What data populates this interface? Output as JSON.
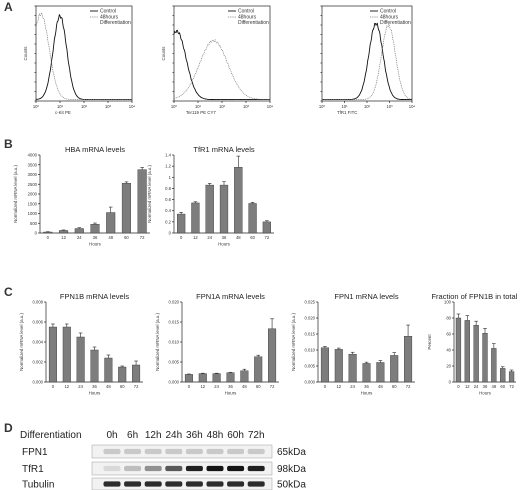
{
  "panels": {
    "a": "A",
    "b": "B",
    "c": "C",
    "d": "D"
  },
  "chart_data": [
    {
      "type": "line",
      "id": "A1",
      "xlabel": "c-Kit PE",
      "ylabel": "Counts",
      "log_x": true,
      "x_ticks": [
        "10⁰",
        "10¹",
        "10²",
        "10³",
        "10⁴"
      ],
      "legend": [
        "Control",
        "48hours Differentiation"
      ],
      "series": [
        {
          "name": "Control",
          "style": "solid",
          "peaks": [
            {
              "x": 10.0,
              "h": 0.88,
              "w": 0.18
            }
          ]
        },
        {
          "name": "48hours Differentiation",
          "style": "dotted",
          "peaks": [
            {
              "x": 1.6,
              "h": 0.9,
              "w": 0.22
            }
          ]
        }
      ]
    },
    {
      "type": "line",
      "id": "A2",
      "xlabel": "Ter119 PE CY7",
      "ylabel": "Counts",
      "log_x": true,
      "x_ticks": [
        "10⁰",
        "10¹",
        "10²",
        "10³",
        "10⁴"
      ],
      "legend": [
        "Control",
        "48hours Differentiation"
      ],
      "series": [
        {
          "name": "Control",
          "style": "solid",
          "peaks": [
            {
              "x": 1.3,
              "h": 0.72,
              "w": 0.25
            }
          ]
        },
        {
          "name": "48hours Differentiation",
          "style": "dotted",
          "peaks": [
            {
              "x": 45,
              "h": 0.62,
              "w": 0.38
            }
          ]
        }
      ]
    },
    {
      "type": "line",
      "id": "A3",
      "xlabel": "TfR1 FITC",
      "ylabel": "",
      "log_x": true,
      "x_ticks": [
        "10⁰",
        "10¹",
        "10²",
        "10³",
        "10⁴"
      ],
      "legend": [
        "Control",
        "48hours Differentiation"
      ],
      "series": [
        {
          "name": "Control",
          "style": "solid",
          "peaks": [
            {
              "x": 250,
              "h": 0.8,
              "w": 0.2
            }
          ]
        },
        {
          "name": "48hours Differentiation",
          "style": "dotted",
          "peaks": [
            {
              "x": 900,
              "h": 0.78,
              "w": 0.2
            }
          ]
        }
      ]
    },
    {
      "type": "bar",
      "id": "B1",
      "title": "HBA mRNA levels",
      "xlabel": "Hours",
      "ylabel": "Normalized mRNA level (a.u.)",
      "categories": [
        "0",
        "12",
        "24",
        "36",
        "48",
        "60",
        "72"
      ],
      "values": [
        50,
        130,
        230,
        450,
        1050,
        2550,
        3250
      ],
      "errors": [
        15,
        25,
        40,
        60,
        280,
        70,
        110
      ],
      "ylim": [
        0,
        4000
      ],
      "yticks": [
        0,
        500,
        1000,
        1500,
        2000,
        2500,
        3000,
        3500,
        4000
      ]
    },
    {
      "type": "bar",
      "id": "B2",
      "title": "TfR1 mRNA levels",
      "xlabel": "Hours",
      "ylabel": "Normalized mRNA level (a.u.)",
      "categories": [
        "0",
        "12",
        "24",
        "36",
        "48",
        "60",
        "72"
      ],
      "values": [
        0.34,
        0.54,
        0.86,
        0.86,
        1.18,
        0.53,
        0.2
      ],
      "errors": [
        0.03,
        0.02,
        0.03,
        0.06,
        0.2,
        0.02,
        0.02
      ],
      "ylim": [
        0,
        1.4
      ],
      "yticks": [
        0,
        0.2,
        0.4,
        0.6,
        0.8,
        1.0,
        1.2,
        1.4
      ]
    },
    {
      "type": "bar",
      "id": "C1",
      "title": "FPN1B mRNA levels",
      "xlabel": "Hours",
      "ylabel": "Normalized mRNA level (a.u.)",
      "categories": [
        "0",
        "12",
        "24",
        "36",
        "48",
        "60",
        "72"
      ],
      "values": [
        0.0055,
        0.0055,
        0.0045,
        0.0032,
        0.0024,
        0.0015,
        0.0017
      ],
      "errors": [
        0.0003,
        0.0003,
        0.0004,
        0.0003,
        0.0003,
        0.0001,
        0.0004
      ],
      "ylim": [
        0,
        0.008
      ],
      "yticks": [
        0,
        0.002,
        0.004,
        0.006,
        0.008
      ],
      "ytick_labels": [
        "0.000",
        "0.002",
        "0.004",
        "0.006",
        "0.008"
      ]
    },
    {
      "type": "bar",
      "id": "C2",
      "title": "FPN1A mRNA levels",
      "xlabel": "Hours",
      "ylabel": "Normalized mRNA level (a.u.)",
      "categories": [
        "0",
        "12",
        "24",
        "36",
        "48",
        "60",
        "72"
      ],
      "values": [
        0.0019,
        0.0021,
        0.0021,
        0.0023,
        0.0028,
        0.0063,
        0.0133
      ],
      "errors": [
        0.0001,
        0.0001,
        0.0001,
        0.0001,
        0.0004,
        0.0004,
        0.0025
      ],
      "ylim": [
        0,
        0.02
      ],
      "yticks": [
        0,
        0.005,
        0.01,
        0.015,
        0.02
      ],
      "ytick_labels": [
        "0.000",
        "0.005",
        "0.010",
        "0.015",
        "0.020"
      ]
    },
    {
      "type": "bar",
      "id": "C3",
      "title": "FPN1 mRNA levels",
      "xlabel": "Hours",
      "ylabel": "Normalized mRNA level (a.u.)",
      "categories": [
        "0",
        "12",
        "24",
        "36",
        "48",
        "60",
        "72"
      ],
      "values": [
        0.0107,
        0.0102,
        0.0087,
        0.0058,
        0.0061,
        0.0083,
        0.0143
      ],
      "errors": [
        0.0004,
        0.0004,
        0.0006,
        0.0004,
        0.0006,
        0.0009,
        0.0035
      ],
      "ylim": [
        0,
        0.025
      ],
      "yticks": [
        0,
        0.005,
        0.01,
        0.015,
        0.02,
        0.025
      ],
      "ytick_labels": [
        "0.000",
        "0.005",
        "0.010",
        "0.015",
        "0.020",
        "0.025"
      ]
    },
    {
      "type": "bar",
      "id": "C4",
      "title": "Fraction of FPN1B in total FPN1",
      "xlabel": "Hours",
      "ylabel": "Percent",
      "categories": [
        "0",
        "12",
        "24",
        "36",
        "48",
        "60",
        "72"
      ],
      "values": [
        80,
        77,
        71,
        61,
        42,
        17,
        13
      ],
      "errors": [
        5,
        6,
        5,
        6,
        6,
        2,
        2
      ],
      "ylim": [
        0,
        100
      ],
      "yticks": [
        0,
        20,
        40,
        60,
        80,
        100
      ]
    }
  ],
  "blot": {
    "header": "Differentiation",
    "times": [
      "0h",
      "6h",
      "12h",
      "24h",
      "36h",
      "48h",
      "60h",
      "72h"
    ],
    "rows": [
      {
        "name": "FPN1",
        "size": "65kDa",
        "intensity": [
          0.15,
          0.15,
          0.15,
          0.15,
          0.15,
          0.15,
          0.15,
          0.15
        ]
      },
      {
        "name": "TfR1",
        "size": "98kDa",
        "intensity": [
          0.08,
          0.2,
          0.4,
          0.65,
          0.9,
          0.95,
          0.95,
          0.9
        ]
      },
      {
        "name": "Tubulin",
        "size": "50kDa",
        "intensity": [
          0.85,
          0.85,
          0.85,
          0.85,
          0.85,
          0.85,
          0.85,
          0.85
        ]
      }
    ]
  },
  "colors": {
    "bar": "#7d7d7d",
    "line": "#111111",
    "dotted": "#777777"
  }
}
